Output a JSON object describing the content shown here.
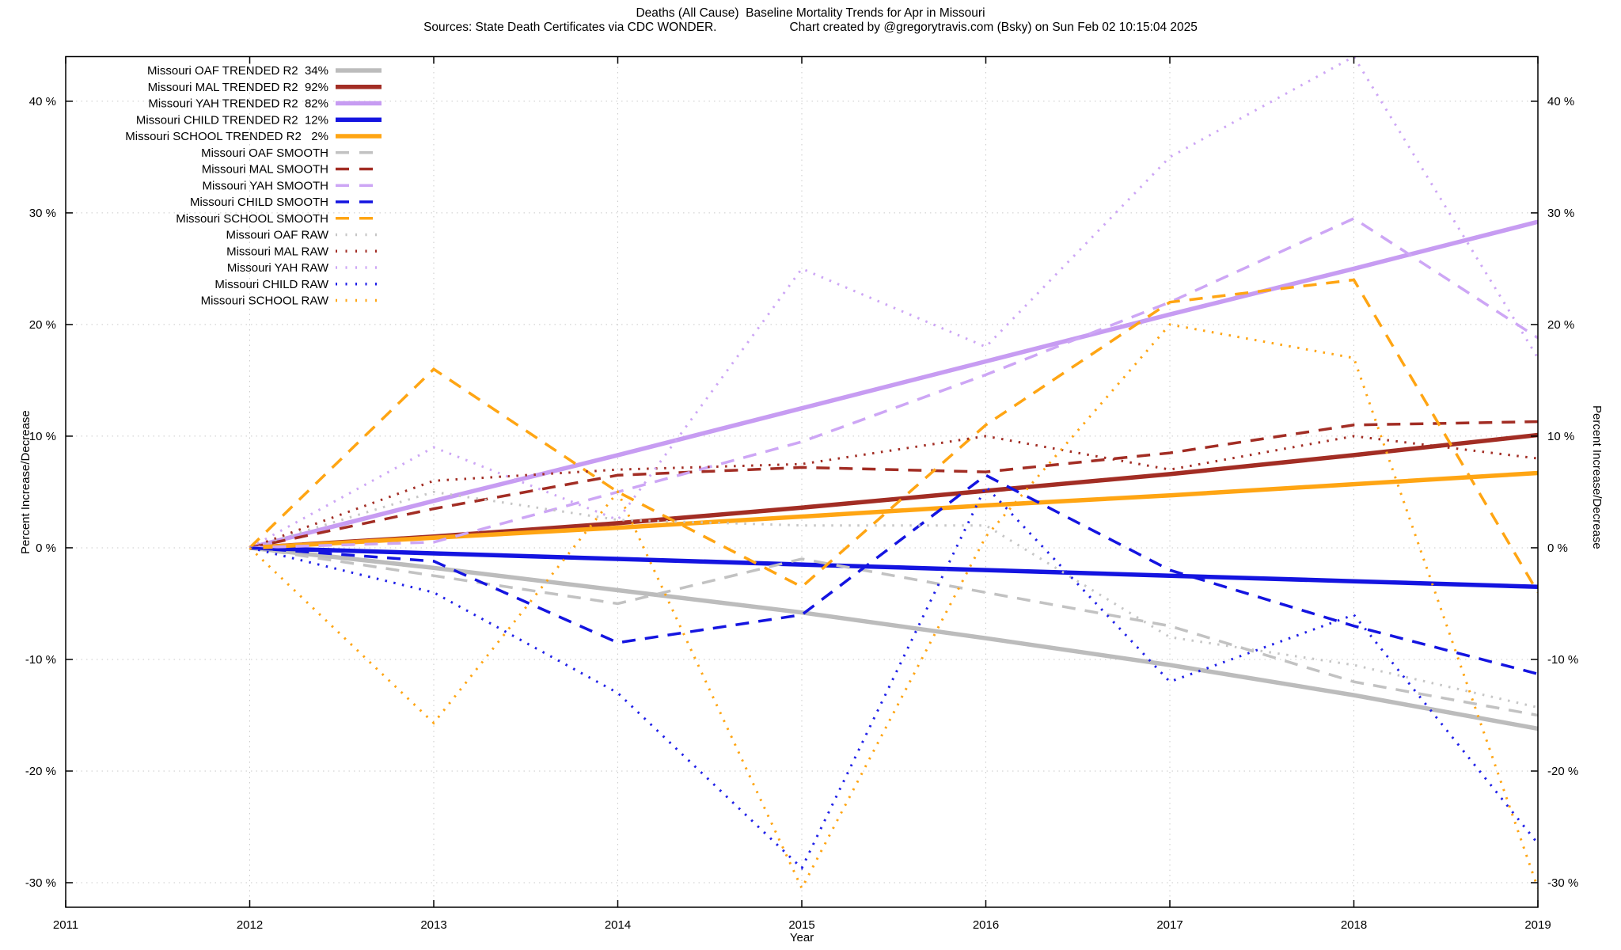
{
  "header": {
    "title": "Deaths (All Cause)  Baseline Mortality Trends for Apr in Missouri",
    "subtitle_source": "Sources: State Death Certificates via CDC WONDER.",
    "subtitle_credit": "Chart created by @gregorytravis.com (Bsky) on Sun Feb 02 10:15:04 2025"
  },
  "axes": {
    "y_label_left": "Percent Increase/Decrease",
    "y_label_right": "Percent Increase/Decrease",
    "x_label": "Year"
  },
  "chart_data": {
    "type": "line",
    "title": "Deaths (All Cause)  Baseline Mortality Trends for Apr in Missouri",
    "x": [
      2012,
      2013,
      2014,
      2015,
      2016,
      2017,
      2018,
      2019
    ],
    "x_axis_ticks": [
      2011,
      2012,
      2013,
      2014,
      2015,
      2016,
      2017,
      2018,
      2019
    ],
    "y_ticks": [
      -30,
      -20,
      -10,
      0,
      10,
      20,
      30,
      40
    ],
    "y_tick_suffix": " %",
    "x_range": [
      2011,
      2019
    ],
    "y_range": [
      -32.2,
      44.0
    ],
    "grid": true,
    "legend_position": "top-left",
    "series": [
      {
        "name": "oaf-trended",
        "label": "Missouri OAF TRENDED R2  34%",
        "color": "#bcbcbc",
        "style": "solid",
        "values": [
          0,
          -1.8,
          -3.8,
          -5.8,
          -8.1,
          -10.5,
          -13.2,
          -16.2
        ]
      },
      {
        "name": "mal-trended",
        "label": "Missouri MAL TRENDED R2  92%",
        "color": "#a22d24",
        "style": "solid",
        "values": [
          0,
          1.0,
          2.2,
          3.6,
          5.1,
          6.6,
          8.3,
          10.1
        ]
      },
      {
        "name": "yah-trended",
        "label": "Missouri YAH TRENDED R2  82%",
        "color": "#c79cf2",
        "style": "solid",
        "values": [
          0,
          4.2,
          8.3,
          12.5,
          16.7,
          20.9,
          25.0,
          29.2
        ]
      },
      {
        "name": "child-trended",
        "label": "Missouri CHILD TRENDED R2  12%",
        "color": "#1414e0",
        "style": "solid",
        "values": [
          0,
          -0.5,
          -1.0,
          -1.5,
          -2.0,
          -2.5,
          -3.0,
          -3.5
        ]
      },
      {
        "name": "school-trended",
        "label": "Missouri SCHOOL TRENDED R2   2%",
        "color": "#ffa513",
        "style": "solid",
        "values": [
          0,
          0.9,
          1.8,
          2.8,
          3.8,
          4.7,
          5.7,
          6.7
        ]
      },
      {
        "name": "oaf-smooth",
        "label": "Missouri OAF SMOOTH",
        "color": "#c2c2c2",
        "style": "dash",
        "values": [
          0,
          -2.5,
          -5.0,
          -1.0,
          -4.0,
          -7.0,
          -12.0,
          -15.0
        ]
      },
      {
        "name": "mal-smooth",
        "label": "Missouri MAL SMOOTH",
        "color": "#a22d24",
        "style": "dash",
        "values": [
          0,
          3.5,
          6.5,
          7.2,
          6.8,
          8.5,
          11.0,
          11.3
        ]
      },
      {
        "name": "yah-smooth",
        "label": "Missouri YAH SMOOTH",
        "color": "#cda6f5",
        "style": "dash",
        "values": [
          0,
          0.5,
          5.0,
          9.5,
          15.5,
          22.0,
          29.5,
          18.8
        ]
      },
      {
        "name": "child-smooth",
        "label": "Missouri CHILD SMOOTH",
        "color": "#1414e0",
        "style": "dash",
        "values": [
          0,
          -1.2,
          -8.5,
          -6.0,
          6.5,
          -2.0,
          -7.0,
          -11.3
        ]
      },
      {
        "name": "school-smooth",
        "label": "Missouri SCHOOL SMOOTH",
        "color": "#ffa513",
        "style": "dash",
        "values": [
          0,
          16.0,
          5.0,
          -3.5,
          11.0,
          22.0,
          24.0,
          -4.0
        ]
      },
      {
        "name": "oaf-raw",
        "label": "Missouri OAF RAW",
        "color": "#c6c6c6",
        "style": "dot",
        "values": [
          0,
          5.0,
          2.5,
          2.0,
          2.0,
          -8.0,
          -10.5,
          -14.3
        ]
      },
      {
        "name": "mal-raw",
        "label": "Missouri MAL RAW",
        "color": "#a22d24",
        "style": "dot",
        "values": [
          0,
          6.0,
          7.0,
          7.5,
          10.0,
          7.0,
          10.0,
          8.0
        ]
      },
      {
        "name": "yah-raw",
        "label": "Missouri YAH RAW",
        "color": "#cda6f5",
        "style": "dot",
        "values": [
          0,
          9.0,
          2.5,
          25.0,
          18.0,
          35.0,
          44.0,
          17.0
        ]
      },
      {
        "name": "child-raw",
        "label": "Missouri CHILD RAW",
        "color": "#2020e8",
        "style": "dot",
        "values": [
          0,
          -4.0,
          -13.0,
          -28.7,
          5.5,
          -12.0,
          -6.0,
          -26.5
        ]
      },
      {
        "name": "school-raw",
        "label": "Missouri SCHOOL RAW",
        "color": "#ffa513",
        "style": "dot",
        "values": [
          0,
          -15.7,
          5.0,
          -30.5,
          1.0,
          20.0,
          17.0,
          -30.5
        ]
      }
    ],
    "grid_color": "#c9c9c9",
    "border_color": "#000000"
  }
}
